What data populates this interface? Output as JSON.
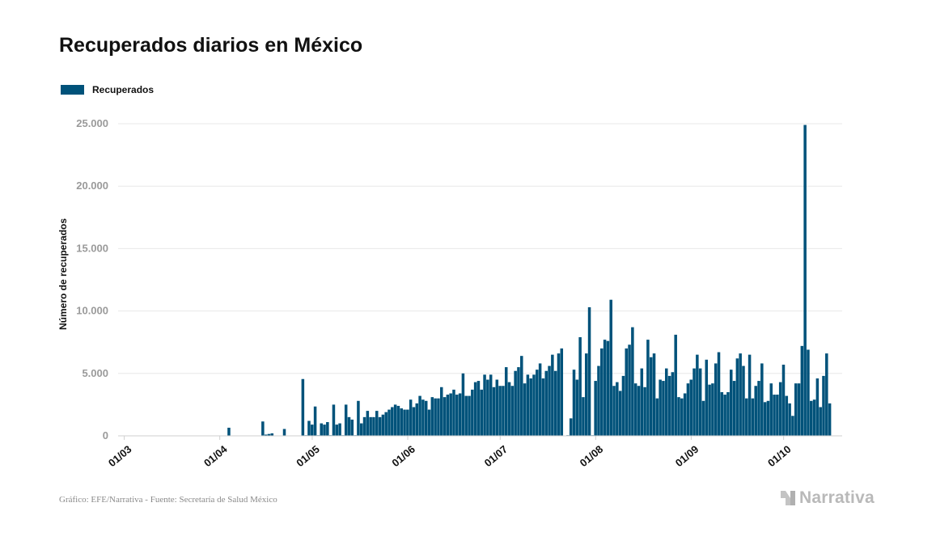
{
  "title": "Recuperados diarios en México",
  "legend": {
    "label": "Recuperados",
    "color": "#00527a"
  },
  "footer": "Gráfico: EFE/Narrativa - Fuente: Secretaría de Salud México",
  "brand": "Narrativa",
  "chart_data": {
    "type": "bar",
    "title": "Recuperados diarios en México",
    "ylabel": "Número de recuperados",
    "xlabel": "",
    "ylim": [
      0,
      25000
    ],
    "y_ticks": [
      0,
      5000,
      10000,
      15000,
      20000,
      25000
    ],
    "y_tick_labels": [
      "0",
      "5.000",
      "10.000",
      "15.000",
      "20.000",
      "25.000"
    ],
    "x_ticks": [
      "2020-03-01",
      "2020-04-01",
      "2020-05-01",
      "2020-06-01",
      "2020-07-01",
      "2020-08-01",
      "2020-09-01",
      "2020-10-01"
    ],
    "x_tick_labels": [
      "01/03",
      "01/04",
      "01/05",
      "01/06",
      "01/07",
      "01/08",
      "01/09",
      "01/10"
    ],
    "grid": true,
    "legend_position": "top-left",
    "series": [
      {
        "name": "Recuperados",
        "color": "#00527a",
        "points": [
          [
            "2020-03-28",
            30
          ],
          [
            "2020-04-04",
            650
          ],
          [
            "2020-04-15",
            1150
          ],
          [
            "2020-04-16",
            100
          ],
          [
            "2020-04-17",
            150
          ],
          [
            "2020-04-18",
            200
          ],
          [
            "2020-04-22",
            550
          ],
          [
            "2020-04-28",
            4550
          ],
          [
            "2020-04-29",
            50
          ],
          [
            "2020-04-30",
            1200
          ],
          [
            "2020-05-01",
            900
          ],
          [
            "2020-05-02",
            2350
          ],
          [
            "2020-05-03",
            50
          ],
          [
            "2020-05-04",
            1000
          ],
          [
            "2020-05-05",
            900
          ],
          [
            "2020-05-06",
            1100
          ],
          [
            "2020-05-07",
            50
          ],
          [
            "2020-05-08",
            2500
          ],
          [
            "2020-05-09",
            900
          ],
          [
            "2020-05-10",
            1000
          ],
          [
            "2020-05-11",
            50
          ],
          [
            "2020-05-12",
            2500
          ],
          [
            "2020-05-13",
            1500
          ],
          [
            "2020-05-14",
            1300
          ],
          [
            "2020-05-15",
            50
          ],
          [
            "2020-05-16",
            2800
          ],
          [
            "2020-05-17",
            1000
          ],
          [
            "2020-05-18",
            1500
          ],
          [
            "2020-05-19",
            2000
          ],
          [
            "2020-05-20",
            1500
          ],
          [
            "2020-05-21",
            1500
          ],
          [
            "2020-05-22",
            2000
          ],
          [
            "2020-05-23",
            1500
          ],
          [
            "2020-05-24",
            1700
          ],
          [
            "2020-05-25",
            1900
          ],
          [
            "2020-05-26",
            2100
          ],
          [
            "2020-05-27",
            2300
          ],
          [
            "2020-05-28",
            2500
          ],
          [
            "2020-05-29",
            2400
          ],
          [
            "2020-05-30",
            2200
          ],
          [
            "2020-05-31",
            2100
          ],
          [
            "2020-06-01",
            2100
          ],
          [
            "2020-06-02",
            2900
          ],
          [
            "2020-06-03",
            2300
          ],
          [
            "2020-06-04",
            2600
          ],
          [
            "2020-06-05",
            3200
          ],
          [
            "2020-06-06",
            2900
          ],
          [
            "2020-06-07",
            2800
          ],
          [
            "2020-06-08",
            2100
          ],
          [
            "2020-06-09",
            3100
          ],
          [
            "2020-06-10",
            3000
          ],
          [
            "2020-06-11",
            3000
          ],
          [
            "2020-06-12",
            3900
          ],
          [
            "2020-06-13",
            3100
          ],
          [
            "2020-06-14",
            3300
          ],
          [
            "2020-06-15",
            3400
          ],
          [
            "2020-06-16",
            3700
          ],
          [
            "2020-06-17",
            3300
          ],
          [
            "2020-06-18",
            3400
          ],
          [
            "2020-06-19",
            5000
          ],
          [
            "2020-06-20",
            3200
          ],
          [
            "2020-06-21",
            3200
          ],
          [
            "2020-06-22",
            3700
          ],
          [
            "2020-06-23",
            4300
          ],
          [
            "2020-06-24",
            4400
          ],
          [
            "2020-06-25",
            3700
          ],
          [
            "2020-06-26",
            4900
          ],
          [
            "2020-06-27",
            4500
          ],
          [
            "2020-06-28",
            4900
          ],
          [
            "2020-06-29",
            3900
          ],
          [
            "2020-06-30",
            4500
          ],
          [
            "2020-07-01",
            4000
          ],
          [
            "2020-07-02",
            4000
          ],
          [
            "2020-07-03",
            5500
          ],
          [
            "2020-07-04",
            4300
          ],
          [
            "2020-07-05",
            4000
          ],
          [
            "2020-07-06",
            5200
          ],
          [
            "2020-07-07",
            5500
          ],
          [
            "2020-07-08",
            6400
          ],
          [
            "2020-07-09",
            4200
          ],
          [
            "2020-07-10",
            4900
          ],
          [
            "2020-07-11",
            4600
          ],
          [
            "2020-07-12",
            4900
          ],
          [
            "2020-07-13",
            5300
          ],
          [
            "2020-07-14",
            5800
          ],
          [
            "2020-07-15",
            4600
          ],
          [
            "2020-07-16",
            5200
          ],
          [
            "2020-07-17",
            5600
          ],
          [
            "2020-07-18",
            6500
          ],
          [
            "2020-07-19",
            5200
          ],
          [
            "2020-07-20",
            6600
          ],
          [
            "2020-07-21",
            7000
          ],
          [
            "2020-07-22",
            0
          ],
          [
            "2020-07-23",
            50
          ],
          [
            "2020-07-24",
            1400
          ],
          [
            "2020-07-25",
            5300
          ],
          [
            "2020-07-26",
            4500
          ],
          [
            "2020-07-27",
            7900
          ],
          [
            "2020-07-28",
            3100
          ],
          [
            "2020-07-29",
            6600
          ],
          [
            "2020-07-30",
            10300
          ],
          [
            "2020-07-31",
            50
          ],
          [
            "2020-08-01",
            4400
          ],
          [
            "2020-08-02",
            5600
          ],
          [
            "2020-08-03",
            7000
          ],
          [
            "2020-08-04",
            7700
          ],
          [
            "2020-08-05",
            7600
          ],
          [
            "2020-08-06",
            10900
          ],
          [
            "2020-08-07",
            4000
          ],
          [
            "2020-08-08",
            4300
          ],
          [
            "2020-08-09",
            3600
          ],
          [
            "2020-08-10",
            4800
          ],
          [
            "2020-08-11",
            7000
          ],
          [
            "2020-08-12",
            7300
          ],
          [
            "2020-08-13",
            8700
          ],
          [
            "2020-08-14",
            4200
          ],
          [
            "2020-08-15",
            4000
          ],
          [
            "2020-08-16",
            5400
          ],
          [
            "2020-08-17",
            3900
          ],
          [
            "2020-08-18",
            7700
          ],
          [
            "2020-08-19",
            6300
          ],
          [
            "2020-08-20",
            6600
          ],
          [
            "2020-08-21",
            3000
          ],
          [
            "2020-08-22",
            4500
          ],
          [
            "2020-08-23",
            4400
          ],
          [
            "2020-08-24",
            5400
          ],
          [
            "2020-08-25",
            4800
          ],
          [
            "2020-08-26",
            5100
          ],
          [
            "2020-08-27",
            8100
          ],
          [
            "2020-08-28",
            3100
          ],
          [
            "2020-08-29",
            3000
          ],
          [
            "2020-08-30",
            3400
          ],
          [
            "2020-08-31",
            4200
          ],
          [
            "2020-09-01",
            4500
          ],
          [
            "2020-09-02",
            5400
          ],
          [
            "2020-09-03",
            6500
          ],
          [
            "2020-09-04",
            5400
          ],
          [
            "2020-09-05",
            2800
          ],
          [
            "2020-09-06",
            6100
          ],
          [
            "2020-09-07",
            4100
          ],
          [
            "2020-09-08",
            4200
          ],
          [
            "2020-09-09",
            5800
          ],
          [
            "2020-09-10",
            6700
          ],
          [
            "2020-09-11",
            3500
          ],
          [
            "2020-09-12",
            3300
          ],
          [
            "2020-09-13",
            3500
          ],
          [
            "2020-09-14",
            5300
          ],
          [
            "2020-09-15",
            4400
          ],
          [
            "2020-09-16",
            6200
          ],
          [
            "2020-09-17",
            6600
          ],
          [
            "2020-09-18",
            5600
          ],
          [
            "2020-09-19",
            3000
          ],
          [
            "2020-09-20",
            6500
          ],
          [
            "2020-09-21",
            3000
          ],
          [
            "2020-09-22",
            4000
          ],
          [
            "2020-09-23",
            4400
          ],
          [
            "2020-09-24",
            5800
          ],
          [
            "2020-09-25",
            2700
          ],
          [
            "2020-09-26",
            2800
          ],
          [
            "2020-09-27",
            4200
          ],
          [
            "2020-09-28",
            3300
          ],
          [
            "2020-09-29",
            3300
          ],
          [
            "2020-09-30",
            4300
          ],
          [
            "2020-10-01",
            5700
          ],
          [
            "2020-10-02",
            3200
          ],
          [
            "2020-10-03",
            2600
          ],
          [
            "2020-10-04",
            1600
          ],
          [
            "2020-10-05",
            4200
          ],
          [
            "2020-10-06",
            4200
          ],
          [
            "2020-10-07",
            7200
          ],
          [
            "2020-10-08",
            24900
          ],
          [
            "2020-10-09",
            6900
          ],
          [
            "2020-10-10",
            2800
          ],
          [
            "2020-10-11",
            2900
          ],
          [
            "2020-10-12",
            4600
          ],
          [
            "2020-10-13",
            2300
          ],
          [
            "2020-10-14",
            4800
          ],
          [
            "2020-10-15",
            6600
          ],
          [
            "2020-10-16",
            2600
          ]
        ]
      }
    ]
  }
}
